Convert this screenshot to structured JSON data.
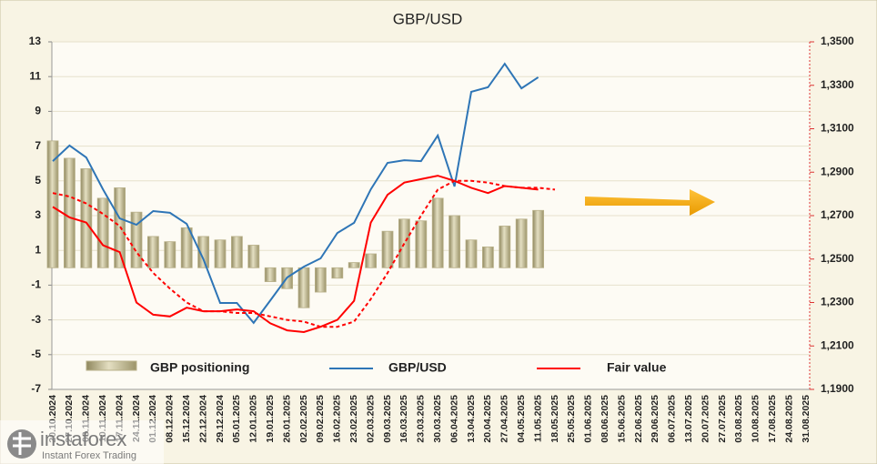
{
  "chart_data": {
    "type": "bar",
    "title": "GBP/USD",
    "categories": [
      "20.10.2024",
      "27.10.2024",
      "03.11.2024",
      "10.11.2024",
      "17.11.2024",
      "24.11.2024",
      "01.12.2024",
      "08.12.2024",
      "15.12.2024",
      "22.12.2024",
      "29.12.2024",
      "05.01.2025",
      "12.01.2025",
      "19.01.2025",
      "26.01.2025",
      "02.02.2025",
      "09.02.2025",
      "16.02.2025",
      "23.02.2025",
      "02.03.2025",
      "09.03.2025",
      "16.03.2025",
      "23.03.2025",
      "30.03.2025",
      "06.04.2025",
      "13.04.2025",
      "20.04.2025",
      "27.04.2025",
      "04.05.2025",
      "11.05.2025",
      "18.05.2025",
      "25.05.2025",
      "01.06.2025",
      "08.06.2025",
      "15.06.2025",
      "22.06.2025",
      "29.06.2025",
      "06.07.2025",
      "13.07.2025",
      "20.07.2025",
      "27.07.2025",
      "03.08.2025",
      "10.08.2025",
      "17.08.2025",
      "24.08.2025",
      "31.08.2025"
    ],
    "series": [
      {
        "name": "GBP positioning",
        "type": "bar",
        "color": "#b9b18a",
        "values": [
          7.3,
          6.3,
          5.7,
          4.0,
          4.6,
          3.2,
          1.8,
          1.5,
          2.3,
          1.8,
          1.6,
          1.8,
          1.3,
          -0.8,
          -1.2,
          -2.3,
          -1.4,
          -0.6,
          0.3,
          0.8,
          2.1,
          2.8,
          2.7,
          4.0,
          3.0,
          1.6,
          1.2,
          2.4,
          2.8,
          3.3,
          null,
          null,
          null,
          null,
          null,
          null,
          null,
          null,
          null,
          null,
          null,
          null,
          null,
          null,
          null,
          null
        ]
      },
      {
        "name": "GBP/USD",
        "type": "line",
        "axis": "y2",
        "color": "#2e75b6",
        "values": [
          1.2951,
          1.3023,
          1.2968,
          1.2821,
          1.2687,
          1.2658,
          1.2721,
          1.2713,
          1.2662,
          1.2499,
          1.2298,
          1.2298,
          1.2206,
          1.231,
          1.2415,
          1.2465,
          1.2503,
          1.262,
          1.2667,
          1.2821,
          1.2943,
          1.2955,
          1.2951,
          1.3069,
          1.2834,
          1.327,
          1.3291,
          1.3399,
          1.3286,
          1.3337,
          null,
          null,
          null,
          null,
          null,
          null,
          null,
          null,
          null,
          null,
          null,
          null,
          null,
          null,
          null,
          null
        ]
      },
      {
        "name": "Fair value",
        "type": "line",
        "color": "#ff0000",
        "values": [
          3.5,
          2.9,
          2.6,
          1.3,
          0.9,
          -2.0,
          -2.7,
          -2.8,
          -2.3,
          -2.5,
          -2.5,
          -2.4,
          -2.5,
          -3.2,
          -3.6,
          -3.7,
          -3.4,
          -3.0,
          -1.9,
          2.6,
          4.2,
          4.9,
          5.1,
          5.3,
          5.0,
          4.6,
          4.3,
          4.7,
          4.6,
          4.5,
          null,
          null,
          null,
          null,
          null,
          null,
          null,
          null,
          null,
          null,
          null,
          null,
          null,
          null,
          null,
          null
        ]
      },
      {
        "type": "line",
        "dashed": true,
        "color": "#ff0000",
        "values": [
          4.3,
          4.1,
          3.7,
          3.1,
          2.4,
          0.9,
          -0.3,
          -1.2,
          -2.0,
          -2.5,
          -2.5,
          -2.6,
          -2.6,
          -2.8,
          -3.0,
          -3.1,
          -3.4,
          -3.4,
          -3.1,
          -1.8,
          -0.3,
          1.4,
          3.0,
          4.5,
          5.0,
          5.0,
          4.9,
          4.7,
          4.6,
          4.6,
          4.5,
          null,
          null,
          null,
          null,
          null,
          null,
          null,
          null,
          null,
          null,
          null,
          null,
          null,
          null,
          null
        ]
      }
    ],
    "ylim": [
      -7,
      13
    ],
    "yticks": [
      -7,
      -5,
      -3,
      -1,
      1,
      3,
      5,
      7,
      9,
      11,
      13
    ],
    "y2lim": [
      1.19,
      1.35
    ],
    "y2ticks": [
      {
        "value": 1.19,
        "label": "1,1900"
      },
      {
        "value": 1.21,
        "label": "1,2100"
      },
      {
        "value": 1.23,
        "label": "1,2300"
      },
      {
        "value": 1.25,
        "label": "1,2500"
      },
      {
        "value": 1.27,
        "label": "1,2700"
      },
      {
        "value": 1.29,
        "label": "1,2900"
      },
      {
        "value": 1.31,
        "label": "1,3100"
      },
      {
        "value": 1.33,
        "label": "1,3300"
      },
      {
        "value": 1.35,
        "label": "1,3500"
      }
    ],
    "grid": true
  },
  "watermark": {
    "brand": "instaforex",
    "tagline": "Instant Forex Trading"
  }
}
